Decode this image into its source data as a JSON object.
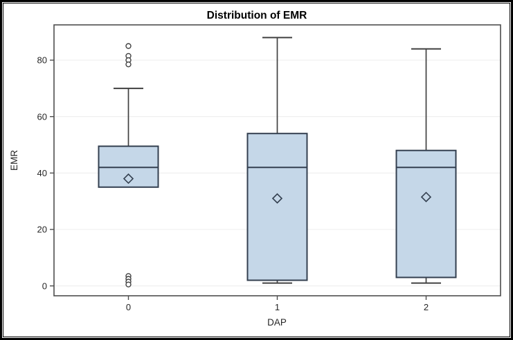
{
  "figure": {
    "title": "Distribution of EMR",
    "border_color": "#000000",
    "background": "#ffffff"
  },
  "chart_data": {
    "type": "boxplot",
    "title": "Distribution of EMR",
    "xlabel": "DAP",
    "ylabel": "EMR",
    "categories": [
      "0",
      "1",
      "2"
    ],
    "y_ticks": [
      0,
      20,
      40,
      60,
      80
    ],
    "ylim": [
      -3.5,
      92.5
    ],
    "grid": true,
    "legend": "none",
    "boxes": [
      {
        "category": "0",
        "whisker_low": null,
        "q1": 35,
        "median": 42,
        "q3": 49.5,
        "whisker_high": 70,
        "mean": 38,
        "outliers_high": [
          85,
          81.5,
          80,
          78.5
        ],
        "outliers_low": [
          3.5,
          2.5,
          1.5,
          0.5
        ]
      },
      {
        "category": "1",
        "whisker_low": 1,
        "q1": 2,
        "median": 42,
        "q3": 54,
        "whisker_high": 88,
        "mean": 31,
        "outliers_high": [],
        "outliers_low": []
      },
      {
        "category": "2",
        "whisker_low": 1,
        "q1": 3,
        "median": 42,
        "q3": 48,
        "whisker_high": 84,
        "mean": 31.5,
        "outliers_high": [],
        "outliers_low": []
      }
    ],
    "style": {
      "box_fill": "#c5d7e8",
      "box_border": "#333f4f",
      "whisker_color": "#404040",
      "outlier_color": "#404040",
      "mean_marker": "diamond-open",
      "mean_marker_color": "#333f4f",
      "grid_color": "#ececec",
      "axis_color": "#4d4d4d",
      "wall_color": "#ffffff"
    }
  }
}
